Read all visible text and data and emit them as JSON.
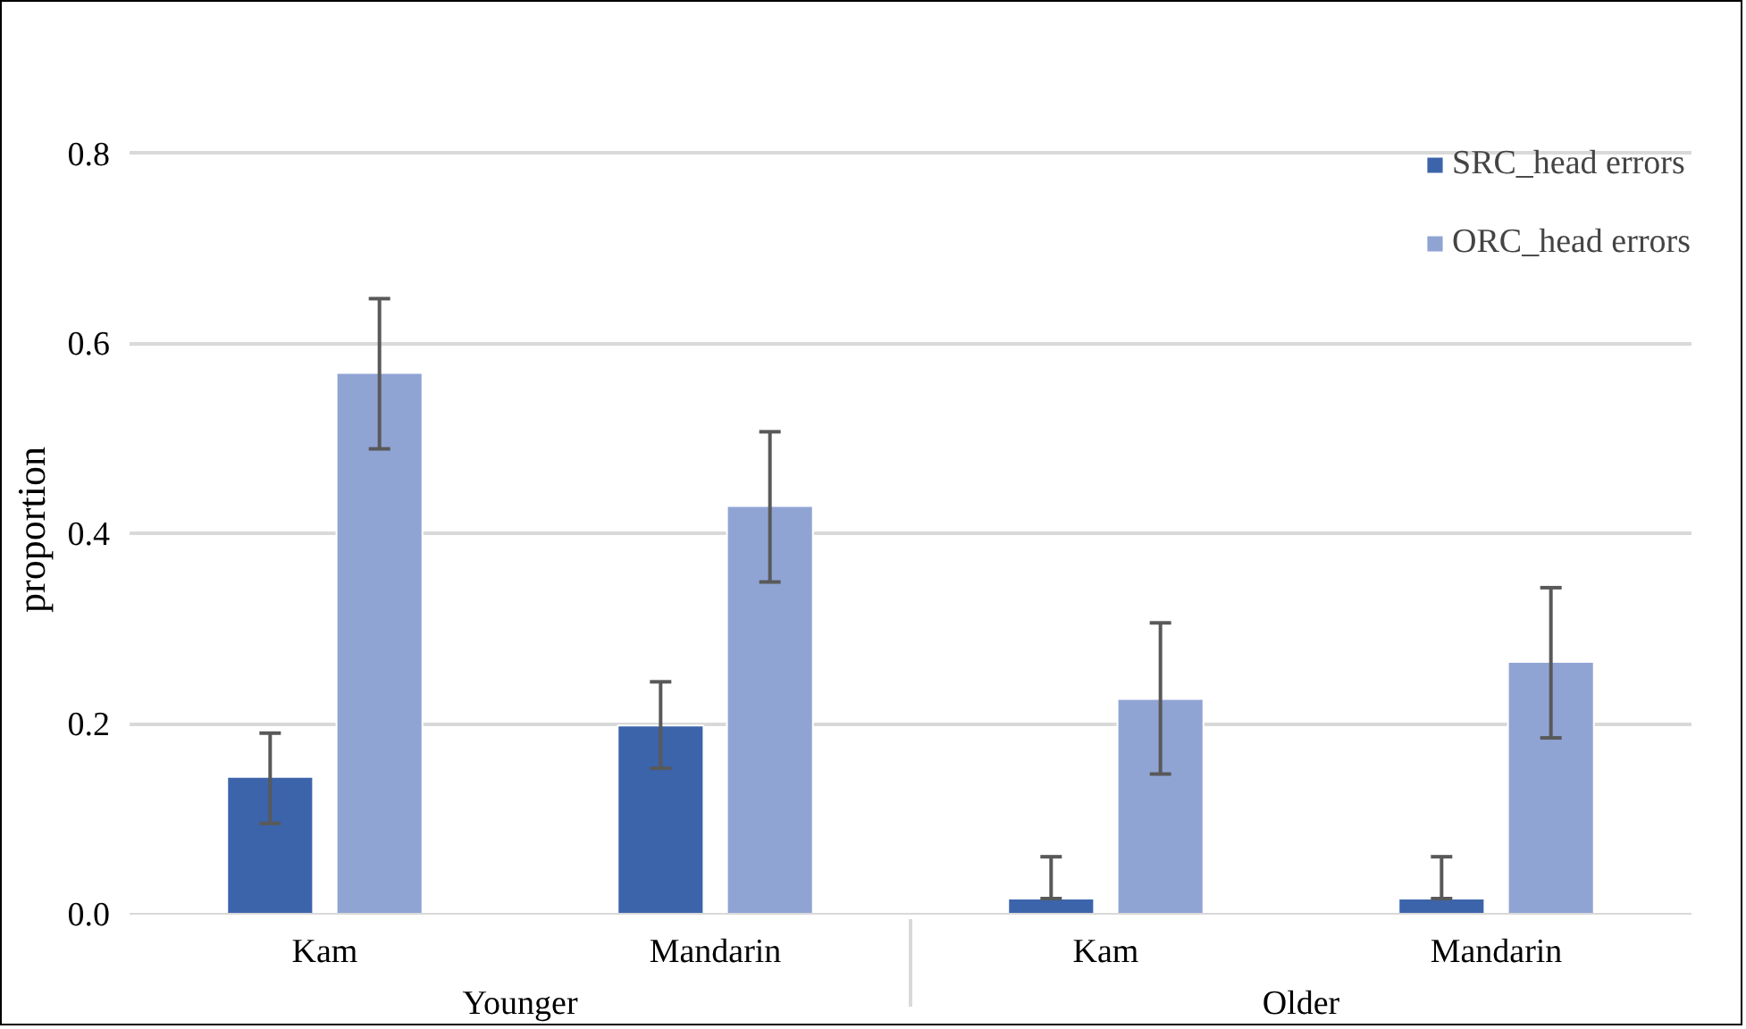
{
  "chart_data": {
    "type": "bar",
    "ylabel": "proportion",
    "categories": [
      "Kam",
      "Mandarin",
      "Kam",
      "Mandarin"
    ],
    "annotations": [
      "Younger",
      "Older"
    ],
    "series": [
      {
        "name": "SRC_head errors",
        "color": "#3c64ab",
        "values": [
          0.144,
          0.198,
          0.016,
          0.016
        ],
        "errors": [
          [
            0.095,
            0.19
          ],
          [
            0.153,
            0.244
          ],
          [
            0.016,
            0.06
          ],
          [
            0.016,
            0.06
          ]
        ]
      },
      {
        "name": "ORC_head errors",
        "color": "#90a4d4",
        "values": [
          0.569,
          0.429,
          0.226,
          0.265
        ],
        "errors": [
          [
            0.489,
            0.647
          ],
          [
            0.349,
            0.507
          ],
          [
            0.147,
            0.306
          ],
          [
            0.185,
            0.343
          ]
        ]
      }
    ],
    "ylim": [
      0,
      0.8
    ],
    "yticks": [
      {
        "value": 0,
        "label": "0.0"
      },
      {
        "value": 0.2,
        "label": "0.2"
      },
      {
        "value": 0.4,
        "label": "0.4"
      },
      {
        "value": 0.6,
        "label": "0.6"
      },
      {
        "value": 0.8,
        "label": "0.8"
      }
    ],
    "grid": "y",
    "legend": "top right"
  }
}
